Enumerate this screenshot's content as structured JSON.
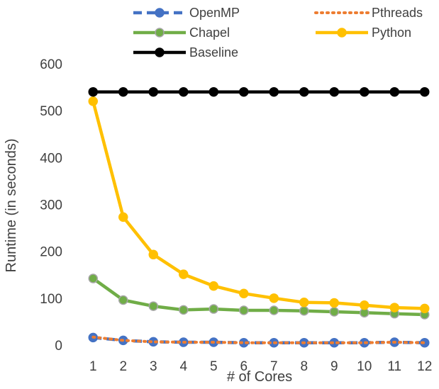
{
  "chart_data": {
    "type": "line",
    "title": "",
    "xlabel": "# of Cores",
    "ylabel": "Runtime (in seconds)",
    "x": [
      1,
      2,
      3,
      4,
      5,
      6,
      7,
      8,
      9,
      10,
      11,
      12
    ],
    "ylim": [
      0,
      600
    ],
    "yticks": [
      0,
      100,
      200,
      300,
      400,
      500,
      600
    ],
    "grid": false,
    "legend_position": "top",
    "series": [
      {
        "name": "OpenMP",
        "color": "#4472C4",
        "line_style": "dashed",
        "marker": "circle",
        "values": [
          16,
          10,
          7,
          6,
          6,
          5,
          5,
          5,
          5,
          5,
          6,
          5
        ]
      },
      {
        "name": "Pthreads",
        "color": "#ED7D31",
        "line_style": "dotted",
        "marker": "none",
        "values": [
          17,
          10,
          7,
          6,
          6,
          5,
          5,
          5,
          5,
          5,
          6,
          5
        ]
      },
      {
        "name": "Chapel",
        "color": "#70AD47",
        "line_style": "solid",
        "marker": "circle",
        "values": [
          142,
          96,
          83,
          75,
          77,
          74,
          74,
          73,
          71,
          69,
          67,
          65
        ]
      },
      {
        "name": "Python",
        "color": "#FFC000",
        "line_style": "solid",
        "marker": "circle",
        "values": [
          520,
          273,
          193,
          151,
          126,
          110,
          100,
          91,
          90,
          85,
          80,
          78
        ]
      },
      {
        "name": "Baseline",
        "color": "#000000",
        "line_style": "solid",
        "marker": "circle",
        "values": [
          540,
          540,
          540,
          540,
          540,
          540,
          540,
          540,
          540,
          540,
          540,
          540
        ]
      }
    ]
  }
}
